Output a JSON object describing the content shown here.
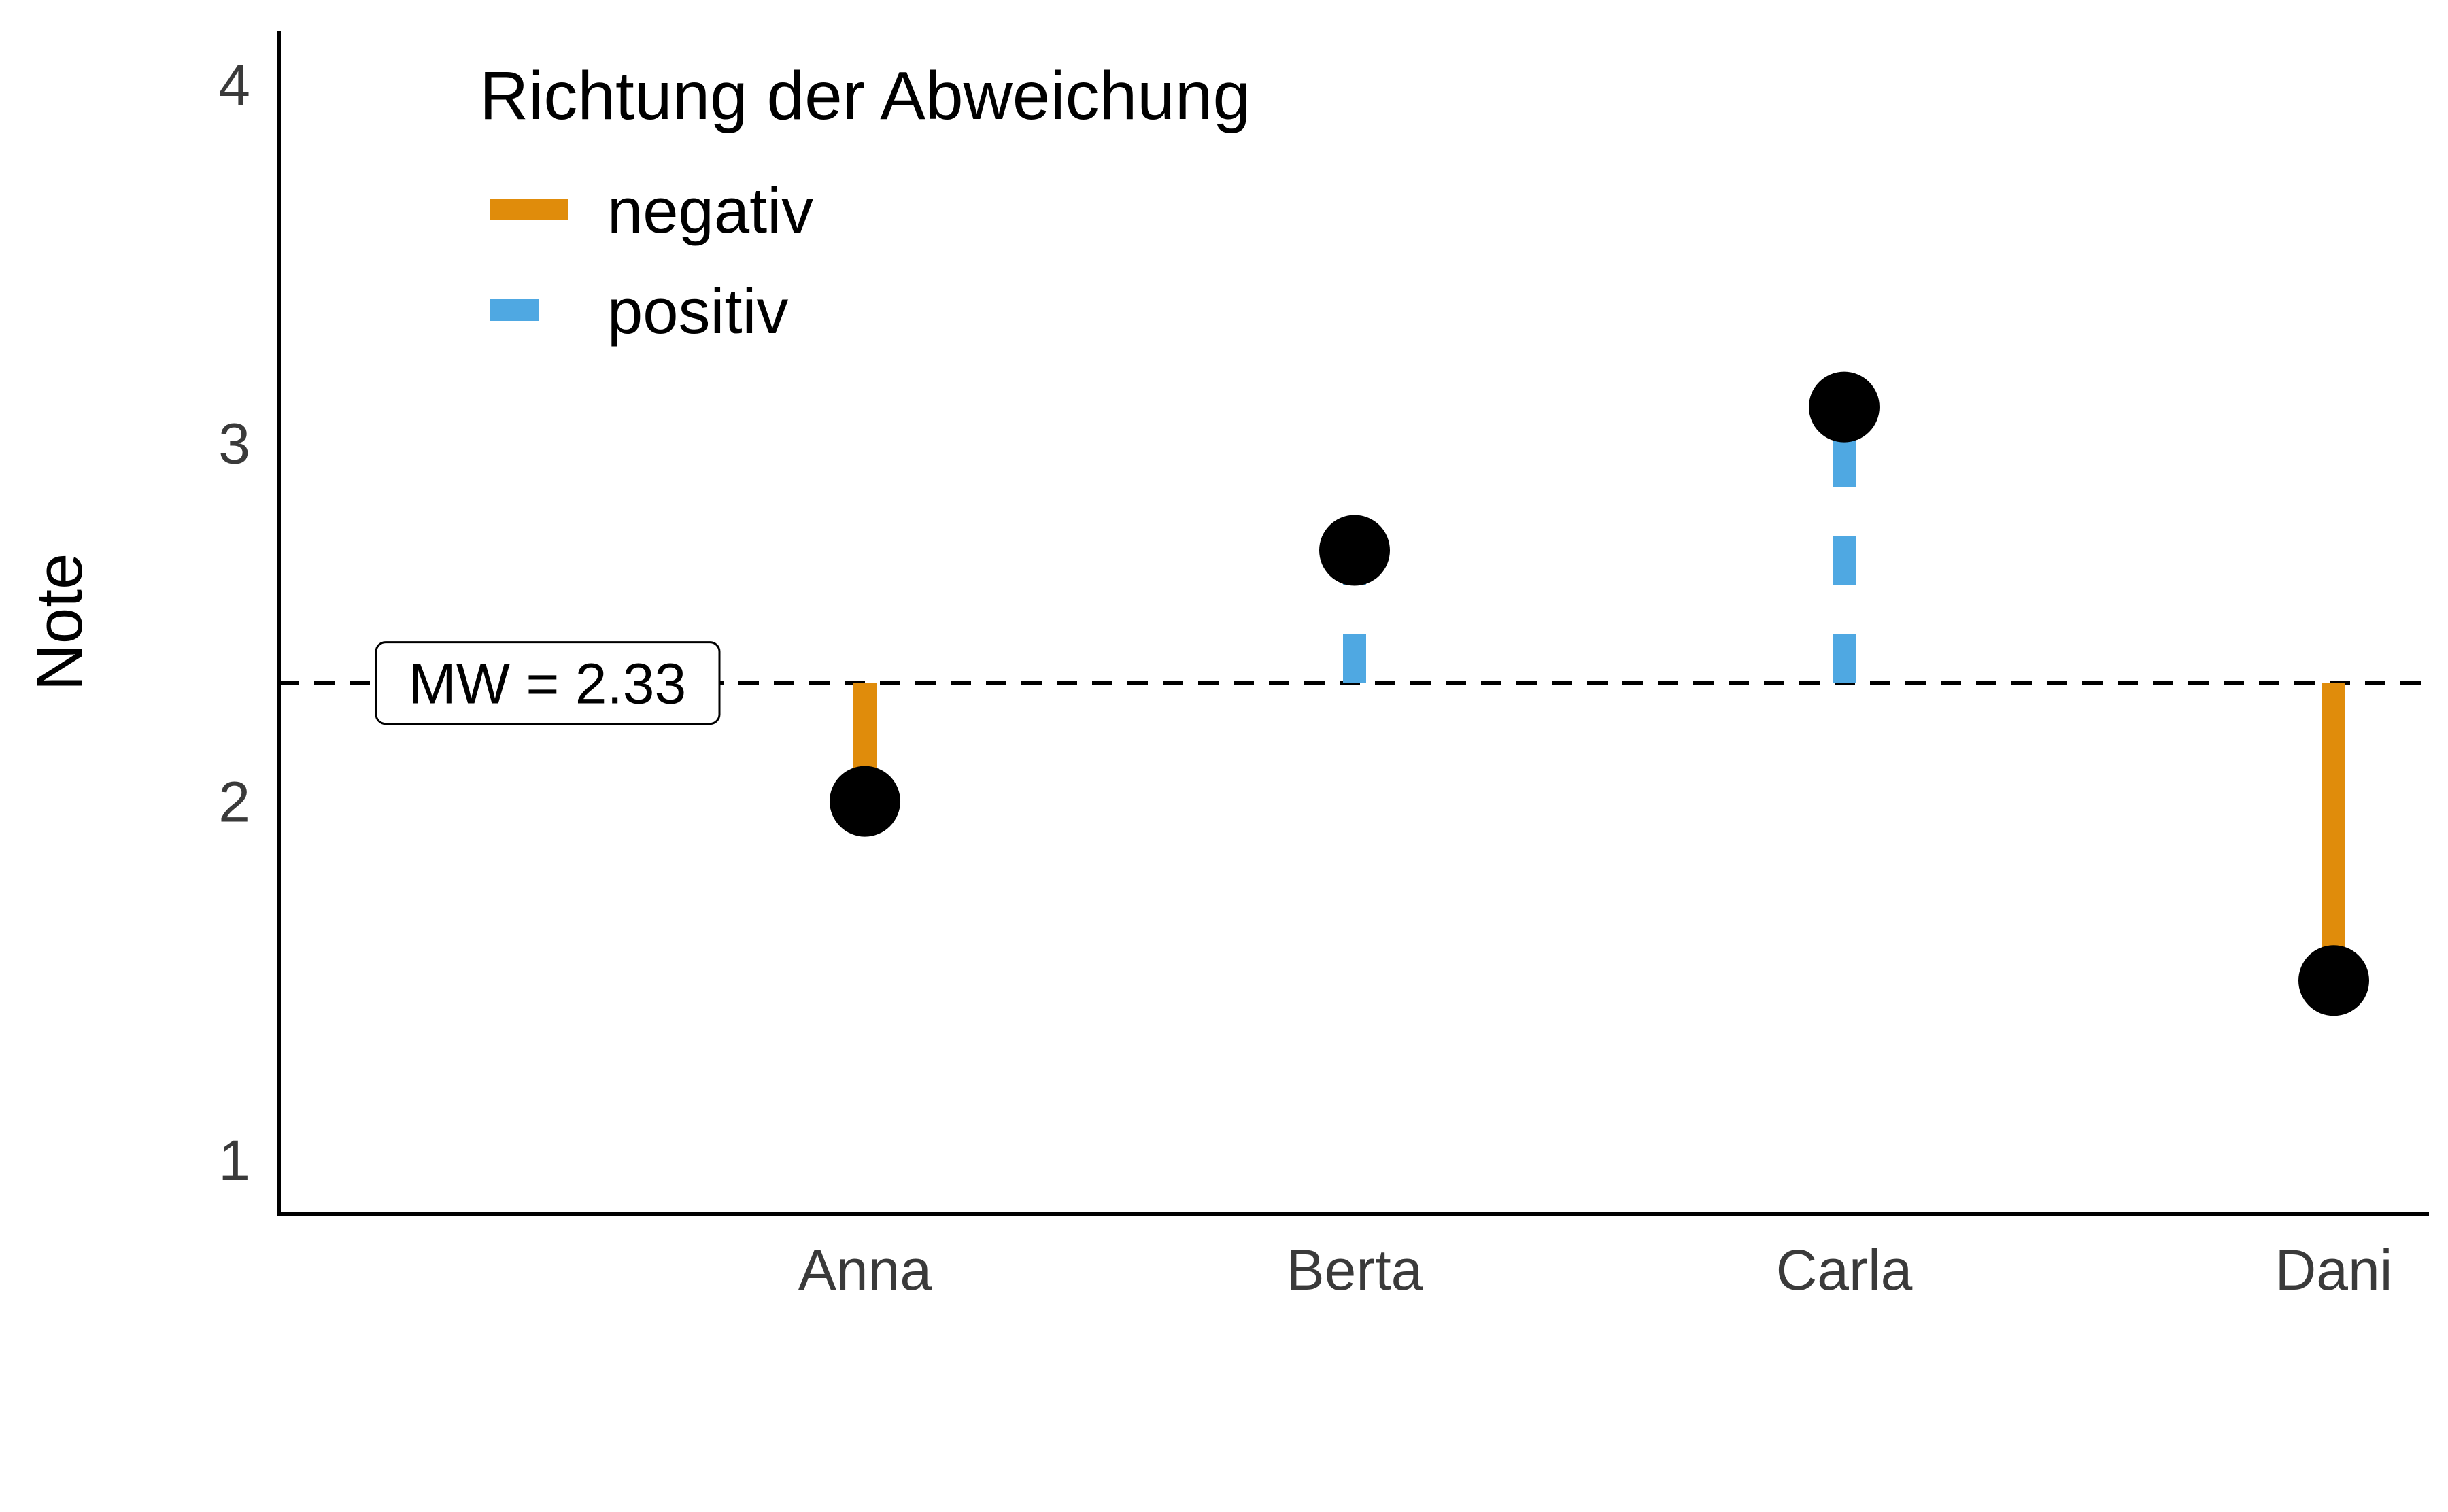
{
  "chart_data": {
    "type": "lollipop",
    "categories": [
      "Anna",
      "Berta",
      "Carla",
      "Dani"
    ],
    "values": [
      2.0,
      2.7,
      3.1,
      1.5
    ],
    "mean": 2.33,
    "mean_label": "MW = 2.33",
    "ylabel": "Note",
    "xlabel": "",
    "ylim": [
      0.85,
      4.15
    ],
    "yticks": [
      "1",
      "2",
      "3",
      "4"
    ],
    "grid": false,
    "legend": {
      "title": "Richtung der Abweichung",
      "position": "top-left",
      "entries": [
        {
          "label": "negativ",
          "color": "#E08C0B",
          "linetype": "solid"
        },
        {
          "label": "positiv",
          "color": "#4FA8E2",
          "linetype": "dashed"
        }
      ]
    },
    "colors": {
      "negativ": "#E08C0B",
      "positiv": "#4FA8E2",
      "points": "#000000",
      "mean_line": "#000000"
    }
  }
}
